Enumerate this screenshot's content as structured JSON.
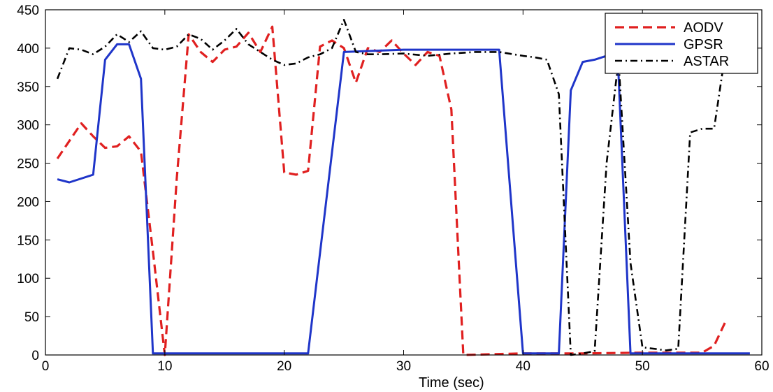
{
  "chart_data": {
    "type": "line",
    "title": "",
    "xlabel": "Time (sec)",
    "ylabel": "",
    "xlim": [
      0,
      60
    ],
    "ylim": [
      0,
      450
    ],
    "xticks": [
      0,
      10,
      20,
      30,
      40,
      50,
      60
    ],
    "yticks": [
      0,
      50,
      100,
      150,
      200,
      250,
      300,
      350,
      400,
      450
    ],
    "grid": false,
    "legend_position": "top-right",
    "series": [
      {
        "name": "AODV",
        "color": "#e02020",
        "style": "dashed",
        "points": [
          [
            1,
            256
          ],
          [
            3,
            302
          ],
          [
            4,
            285
          ],
          [
            5,
            270
          ],
          [
            6,
            272
          ],
          [
            7,
            285
          ],
          [
            8,
            265
          ],
          [
            9,
            135
          ],
          [
            10,
            0
          ],
          [
            11,
            230
          ],
          [
            12,
            418
          ],
          [
            13,
            395
          ],
          [
            14,
            382
          ],
          [
            15,
            398
          ],
          [
            16,
            402
          ],
          [
            17,
            420
          ],
          [
            18,
            395
          ],
          [
            19,
            428
          ],
          [
            20,
            238
          ],
          [
            21,
            235
          ],
          [
            22,
            240
          ],
          [
            23,
            402
          ],
          [
            24,
            410
          ],
          [
            25,
            400
          ],
          [
            26,
            355
          ],
          [
            27,
            400
          ],
          [
            28,
            395
          ],
          [
            29,
            410
          ],
          [
            30,
            393
          ],
          [
            31,
            378
          ],
          [
            32,
            395
          ],
          [
            33,
            390
          ],
          [
            34,
            320
          ],
          [
            35,
            0
          ],
          [
            40,
            2
          ],
          [
            45,
            2
          ],
          [
            50,
            3
          ],
          [
            55,
            3
          ],
          [
            56,
            12
          ],
          [
            57,
            45
          ]
        ]
      },
      {
        "name": "GPSR",
        "color": "#1f35c9",
        "style": "solid",
        "points": [
          [
            1,
            229
          ],
          [
            2,
            225
          ],
          [
            3,
            230
          ],
          [
            4,
            235
          ],
          [
            5,
            385
          ],
          [
            6,
            405
          ],
          [
            7,
            405
          ],
          [
            8,
            360
          ],
          [
            9,
            2
          ],
          [
            10,
            2
          ],
          [
            15,
            2
          ],
          [
            20,
            2
          ],
          [
            22,
            2
          ],
          [
            25,
            395
          ],
          [
            30,
            398
          ],
          [
            35,
            398
          ],
          [
            38,
            398
          ],
          [
            40,
            2
          ],
          [
            43,
            2
          ],
          [
            44,
            345
          ],
          [
            45,
            382
          ],
          [
            46,
            385
          ],
          [
            47,
            390
          ],
          [
            48,
            365
          ],
          [
            49,
            2
          ],
          [
            55,
            2
          ],
          [
            59,
            2
          ]
        ]
      },
      {
        "name": "ASTAR",
        "color": "#000000",
        "style": "dashdot",
        "points": [
          [
            1,
            360
          ],
          [
            2,
            400
          ],
          [
            3,
            398
          ],
          [
            4,
            392
          ],
          [
            5,
            402
          ],
          [
            6,
            418
          ],
          [
            7,
            408
          ],
          [
            8,
            422
          ],
          [
            9,
            400
          ],
          [
            10,
            398
          ],
          [
            11,
            402
          ],
          [
            12,
            418
          ],
          [
            13,
            412
          ],
          [
            14,
            398
          ],
          [
            15,
            410
          ],
          [
            16,
            425
          ],
          [
            17,
            405
          ],
          [
            18,
            395
          ],
          [
            19,
            385
          ],
          [
            20,
            378
          ],
          [
            21,
            380
          ],
          [
            22,
            388
          ],
          [
            23,
            392
          ],
          [
            24,
            400
          ],
          [
            25,
            437
          ],
          [
            26,
            395
          ],
          [
            27,
            392
          ],
          [
            28,
            392
          ],
          [
            30,
            393
          ],
          [
            32,
            390
          ],
          [
            34,
            393
          ],
          [
            36,
            395
          ],
          [
            38,
            395
          ],
          [
            40,
            390
          ],
          [
            41,
            388
          ],
          [
            42,
            385
          ],
          [
            43,
            340
          ],
          [
            44,
            0
          ],
          [
            45,
            2
          ],
          [
            46,
            5
          ],
          [
            47,
            250
          ],
          [
            48,
            385
          ],
          [
            49,
            120
          ],
          [
            50,
            10
          ],
          [
            52,
            6
          ],
          [
            53,
            8
          ],
          [
            54,
            290
          ],
          [
            55,
            295
          ],
          [
            56,
            295
          ],
          [
            57,
            400
          ]
        ]
      }
    ]
  }
}
